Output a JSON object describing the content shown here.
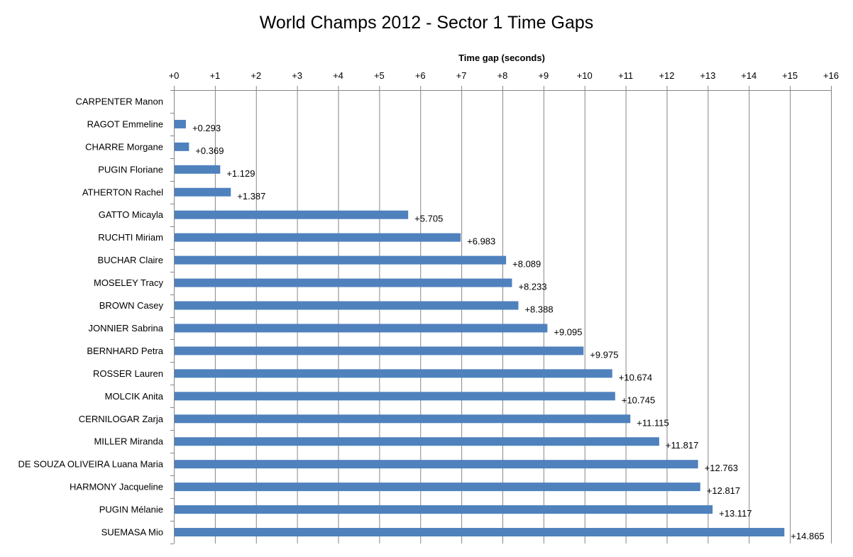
{
  "chart_data": {
    "type": "bar",
    "orientation": "horizontal",
    "title": "World Champs 2012 - Sector 1 Time Gaps",
    "xlabel": "Time gap (seconds)",
    "ylabel": "",
    "xaxis_position": "top",
    "xlim": [
      0,
      16
    ],
    "xticks": [
      0,
      1,
      2,
      3,
      4,
      5,
      6,
      7,
      8,
      9,
      10,
      11,
      12,
      13,
      14,
      15,
      16
    ],
    "xtick_labels": [
      "+0",
      "+1",
      "+2",
      "+3",
      "+4",
      "+5",
      "+6",
      "+7",
      "+8",
      "+9",
      "+10",
      "+11",
      "+12",
      "+13",
      "+14",
      "+15",
      "+16"
    ],
    "grid": "vertical major gridlines",
    "legend": "none",
    "bar_color": "#4F81BD",
    "categories": [
      "CARPENTER Manon",
      "RAGOT Emmeline",
      "CHARRE Morgane",
      "PUGIN Floriane",
      "ATHERTON Rachel",
      "GATTO Micayla",
      "RUCHTI Miriam",
      "BUCHAR Claire",
      "MOSELEY Tracy",
      "BROWN Casey",
      "JONNIER Sabrina",
      "BERNHARD Petra",
      "ROSSER Lauren",
      "MOLCIK Anita",
      "CERNILOGAR Zarja",
      "MILLER Miranda",
      "DE SOUZA OLIVEIRA Luana Maria",
      "HARMONY Jacqueline",
      "PUGIN Mélanie",
      "SUEMASA Mio"
    ],
    "values": [
      0,
      0.293,
      0.369,
      1.129,
      1.387,
      5.705,
      6.983,
      8.089,
      8.233,
      8.388,
      9.095,
      9.975,
      10.674,
      10.745,
      11.115,
      11.817,
      12.763,
      12.817,
      13.117,
      14.865
    ],
    "data_labels": [
      "",
      "+0.293",
      "+0.369",
      "+1.129",
      "+1.387",
      "+5.705",
      "+6.983",
      "+8.089",
      "+8.233",
      "+8.388",
      "+9.095",
      "+9.975",
      "+10.674",
      "+10.745",
      "+11.115",
      "+11.817",
      "+12.763",
      "+12.817",
      "+13.117",
      "+14.865"
    ]
  }
}
